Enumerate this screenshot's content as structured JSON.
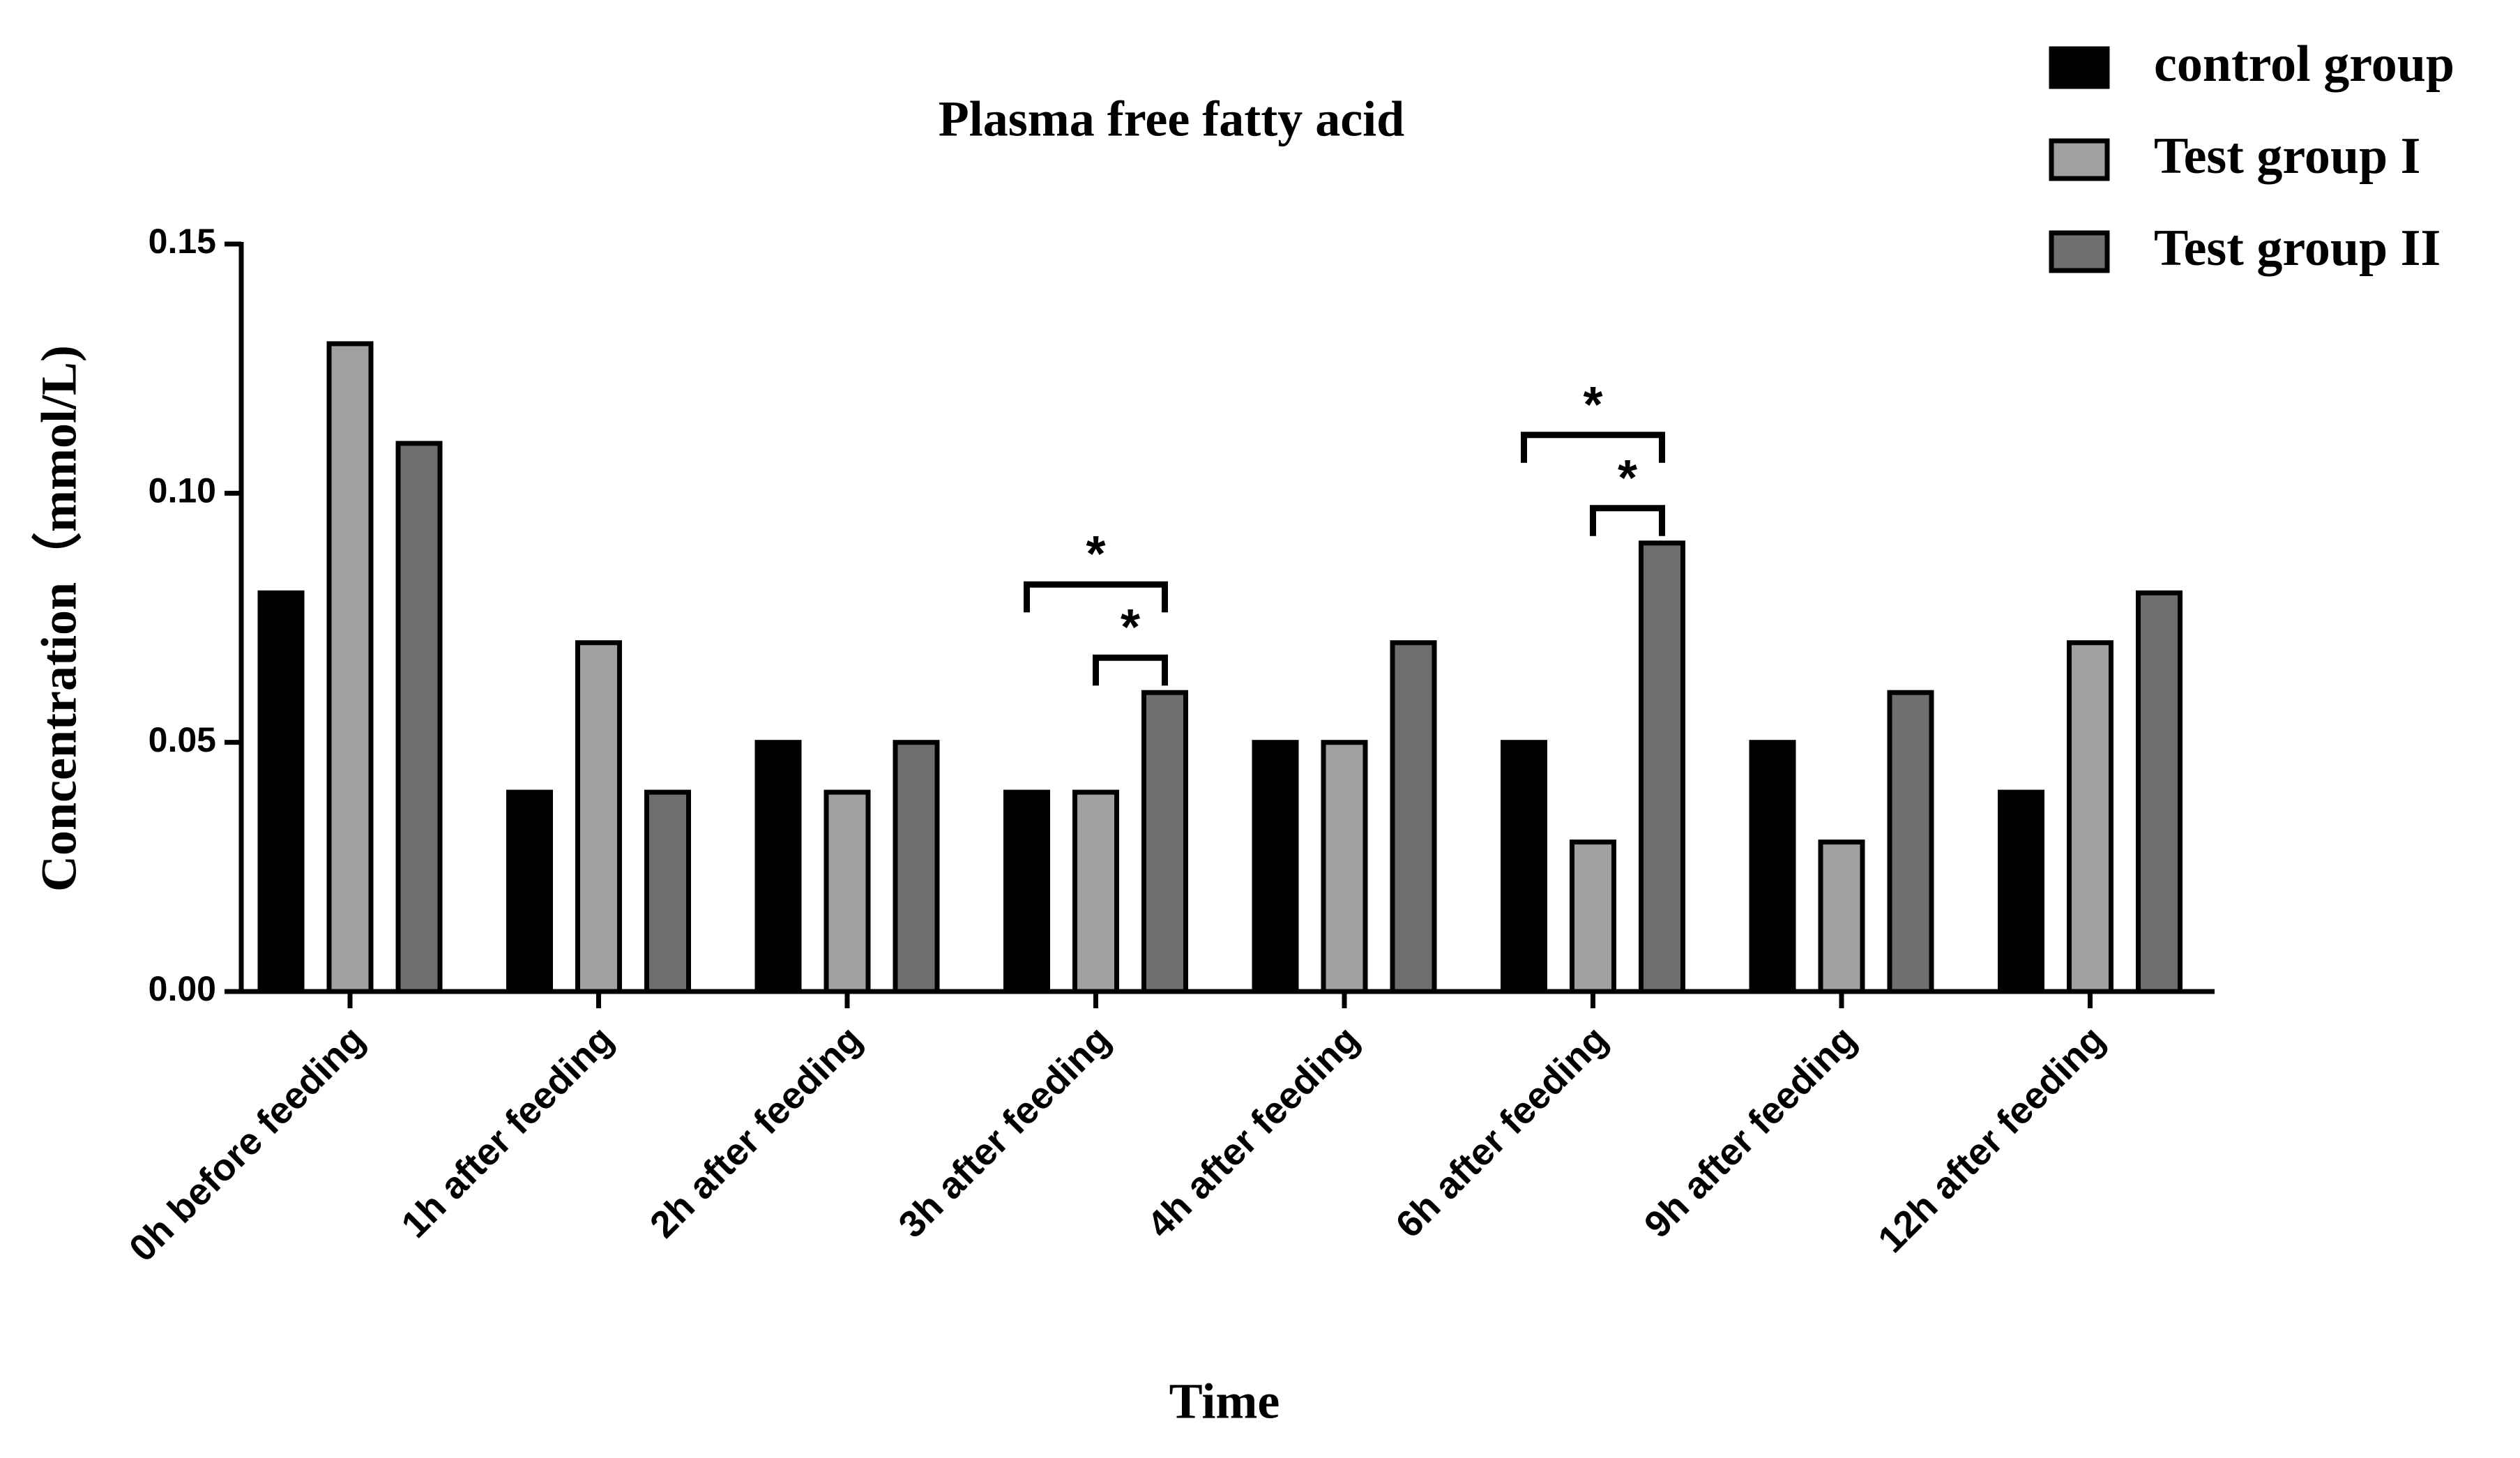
{
  "chart_data": {
    "type": "bar",
    "title": "Plasma free fatty acid",
    "x_label": "Time",
    "y_label": "Concentration（mmol/L)",
    "categories": [
      "0h before feeding",
      "1h after feeding",
      "2h after feeding",
      "3h after feeding",
      "4h after feeding",
      "6h after feeding",
      "9h after feeding",
      "12h after feeding"
    ],
    "series": [
      {
        "name": "control group",
        "color": "#000000",
        "values": [
          0.08,
          0.04,
          0.05,
          0.04,
          0.05,
          0.05,
          0.05,
          0.04
        ]
      },
      {
        "name": "Test group I",
        "color": "#a0a0a0",
        "values": [
          0.13,
          0.07,
          0.04,
          0.04,
          0.05,
          0.03,
          0.03,
          0.07
        ]
      },
      {
        "name": "Test group II",
        "color": "#6e6e6e",
        "values": [
          0.11,
          0.04,
          0.05,
          0.06,
          0.07,
          0.09,
          0.06,
          0.08
        ]
      }
    ],
    "ylim": [
      0,
      0.15
    ],
    "yticks": [
      {
        "value": 0,
        "label": "0.00"
      },
      0.05,
      {
        "value": 0.1,
        "label": "0.10"
      },
      0.15
    ],
    "legend": "top-right",
    "annotations": [
      {
        "category": "3h after feeding",
        "from": "Test group I",
        "to": "Test group II",
        "label": "*"
      },
      {
        "category": "3h after feeding",
        "from": "control group",
        "to": "Test group II",
        "label": "*"
      },
      {
        "category": "6h after feeding",
        "from": "Test group I",
        "to": "Test group II",
        "label": "*"
      },
      {
        "category": "6h after feeding",
        "from": "control group",
        "to": "Test group II",
        "label": "*"
      }
    ]
  }
}
